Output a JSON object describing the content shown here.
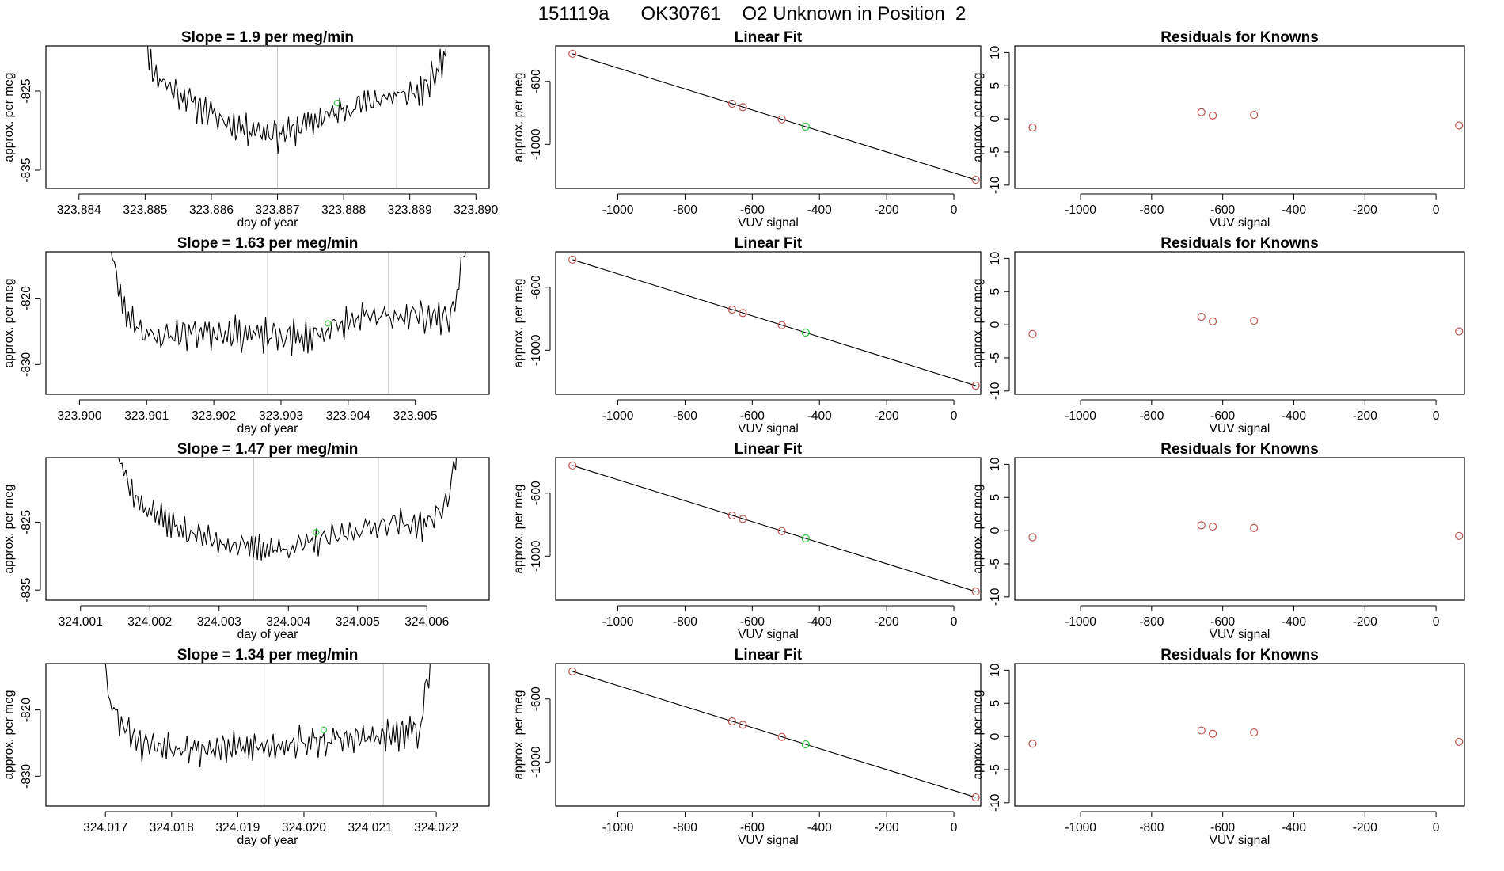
{
  "title": "151119a      OK30761    O2 Unknown in Position  2",
  "colors": {
    "trace": "#000000",
    "known_point": "#c0504d",
    "unknown_point": "#2ecc40",
    "vline": "#c8c8c8"
  },
  "chart_data": [
    {
      "type": "line",
      "panel": "time-series",
      "row": 1,
      "title": "Slope =  1.9  per meg/min",
      "xlabel": "day of year",
      "ylabel": "approx. per meg",
      "xlim": [
        323.8835,
        323.8902
      ],
      "ylim": [
        -837.3,
        -819.3
      ],
      "xticks": [
        "323.884",
        "323.885",
        "323.886",
        "323.887",
        "323.888",
        "323.889",
        "323.890"
      ],
      "yticks": [
        "-825",
        "-835"
      ],
      "trace_start": 323.8849,
      "trace_end": 323.8897,
      "seed": 11,
      "curve": [
        [
          0,
          -815
        ],
        [
          0.05,
          -823
        ],
        [
          0.15,
          -826
        ],
        [
          0.3,
          -829.5
        ],
        [
          0.45,
          -830.5
        ],
        [
          0.6,
          -828
        ],
        [
          0.75,
          -826
        ],
        [
          0.9,
          -825
        ],
        [
          0.96,
          -821
        ],
        [
          1,
          -812
        ]
      ],
      "noise": 1.8,
      "vlines": [
        323.887,
        323.8888
      ],
      "green_point": [
        323.8879,
        -826.5
      ]
    },
    {
      "type": "scatter",
      "panel": "linear-fit",
      "row": 1,
      "title": "Linear Fit",
      "xlabel": "VUV signal",
      "ylabel": "approx. per meg",
      "xlim": [
        -1185,
        80
      ],
      "ylim": [
        -1280,
        -375
      ],
      "xticks": [
        "-1000",
        "-800",
        "-600",
        "-400",
        "-200",
        "0"
      ],
      "yticks": [
        "-600",
        "-1000"
      ],
      "fit_line": [
        [
          -1135,
          -425
        ],
        [
          65,
          -1225
        ]
      ],
      "knowns": [
        [
          -1135,
          -425
        ],
        [
          -660,
          -742
        ],
        [
          -628,
          -764
        ],
        [
          -512,
          -841
        ],
        [
          65,
          -1225
        ]
      ],
      "unknown": [
        [
          -441,
          -888
        ]
      ]
    },
    {
      "type": "scatter",
      "panel": "residuals",
      "row": 1,
      "title": "Residuals for Knowns",
      "xlabel": "VUV signal",
      "ylabel": "approx. per meg",
      "xlim": [
        -1185,
        80
      ],
      "ylim": [
        -10.5,
        11
      ],
      "xticks": [
        "-1000",
        "-800",
        "-600",
        "-400",
        "-200",
        "0"
      ],
      "yticks": [
        "10",
        "5",
        "0",
        "-5",
        "-10"
      ],
      "residuals": [
        [
          -1135,
          -1.3
        ],
        [
          -660,
          1.0
        ],
        [
          -628,
          0.5
        ],
        [
          -512,
          0.6
        ],
        [
          65,
          -1.0
        ]
      ]
    },
    {
      "type": "line",
      "panel": "time-series",
      "row": 2,
      "title": "Slope =  1.63  per meg/min",
      "xlabel": "day of year",
      "ylabel": "approx. per meg",
      "xlim": [
        323.8995,
        323.9061
      ],
      "ylim": [
        -834.5,
        -813
      ],
      "xticks": [
        "323.900",
        "323.901",
        "323.902",
        "323.903",
        "323.904",
        "323.905"
      ],
      "yticks": [
        "-820",
        "-830"
      ],
      "trace_start": 323.9004,
      "trace_end": 323.9058,
      "seed": 23,
      "curve": [
        [
          0,
          -810
        ],
        [
          0.05,
          -822
        ],
        [
          0.12,
          -826
        ],
        [
          0.25,
          -825
        ],
        [
          0.4,
          -825.5
        ],
        [
          0.55,
          -826
        ],
        [
          0.7,
          -823
        ],
        [
          0.85,
          -822.5
        ],
        [
          0.95,
          -823
        ],
        [
          1,
          -810
        ]
      ],
      "noise": 2.2,
      "vlines": [
        323.9028,
        323.9046
      ],
      "green_point": [
        323.9037,
        -823.8
      ]
    },
    {
      "type": "scatter",
      "panel": "linear-fit",
      "row": 2,
      "title": "Linear Fit",
      "xlabel": "VUV signal",
      "ylabel": "approx. per meg",
      "xlim": [
        -1185,
        80
      ],
      "ylim": [
        -1280,
        -375
      ],
      "xticks": [
        "-1000",
        "-800",
        "-600",
        "-400",
        "-200",
        "0"
      ],
      "yticks": [
        "-600",
        "-1000"
      ],
      "fit_line": [
        [
          -1135,
          -425
        ],
        [
          65,
          -1225
        ]
      ],
      "knowns": [
        [
          -1135,
          -425
        ],
        [
          -660,
          -742
        ],
        [
          -628,
          -764
        ],
        [
          -512,
          -841
        ],
        [
          65,
          -1225
        ]
      ],
      "unknown": [
        [
          -441,
          -888
        ]
      ]
    },
    {
      "type": "scatter",
      "panel": "residuals",
      "row": 2,
      "title": "Residuals for Knowns",
      "xlabel": "VUV signal",
      "ylabel": "approx. per meg",
      "xlim": [
        -1185,
        80
      ],
      "ylim": [
        -10.5,
        11
      ],
      "xticks": [
        "-1000",
        "-800",
        "-600",
        "-400",
        "-200",
        "0"
      ],
      "yticks": [
        "10",
        "5",
        "0",
        "-5",
        "-10"
      ],
      "residuals": [
        [
          -1135,
          -1.4
        ],
        [
          -660,
          1.2
        ],
        [
          -628,
          0.5
        ],
        [
          -512,
          0.6
        ],
        [
          65,
          -1.0
        ]
      ]
    },
    {
      "type": "line",
      "panel": "time-series",
      "row": 3,
      "title": "Slope =  1.47  per meg/min",
      "xlabel": "day of year",
      "ylabel": "approx. per meg",
      "xlim": [
        324.0005,
        324.0069
      ],
      "ylim": [
        -836.5,
        -815.5
      ],
      "xticks": [
        "324.001",
        "324.002",
        "324.003",
        "324.004",
        "324.005",
        "324.006"
      ],
      "yticks": [
        "-825",
        "-835"
      ],
      "trace_start": 324.0014,
      "trace_end": 324.0065,
      "seed": 37,
      "curve": [
        [
          0,
          -812
        ],
        [
          0.08,
          -822
        ],
        [
          0.2,
          -826
        ],
        [
          0.35,
          -828.5
        ],
        [
          0.5,
          -829
        ],
        [
          0.65,
          -827
        ],
        [
          0.8,
          -825
        ],
        [
          0.9,
          -825.5
        ],
        [
          0.96,
          -822
        ],
        [
          1,
          -811
        ]
      ],
      "noise": 1.8,
      "vlines": [
        324.0035,
        324.0053
      ],
      "green_point": [
        324.0044,
        -826.5
      ]
    },
    {
      "type": "scatter",
      "panel": "linear-fit",
      "row": 3,
      "title": "Linear Fit",
      "xlabel": "VUV signal",
      "ylabel": "approx. per meg",
      "xlim": [
        -1185,
        80
      ],
      "ylim": [
        -1280,
        -375
      ],
      "xticks": [
        "-1000",
        "-800",
        "-600",
        "-400",
        "-200",
        "0"
      ],
      "yticks": [
        "-600",
        "-1000"
      ],
      "fit_line": [
        [
          -1135,
          -425
        ],
        [
          65,
          -1225
        ]
      ],
      "knowns": [
        [
          -1135,
          -425
        ],
        [
          -660,
          -742
        ],
        [
          -628,
          -764
        ],
        [
          -512,
          -841
        ],
        [
          65,
          -1225
        ]
      ],
      "unknown": [
        [
          -441,
          -888
        ]
      ]
    },
    {
      "type": "scatter",
      "panel": "residuals",
      "row": 3,
      "title": "Residuals for Knowns",
      "xlabel": "VUV signal",
      "ylabel": "approx. per meg",
      "xlim": [
        -1185,
        80
      ],
      "ylim": [
        -10.5,
        11
      ],
      "xticks": [
        "-1000",
        "-800",
        "-600",
        "-400",
        "-200",
        "0"
      ],
      "yticks": [
        "10",
        "5",
        "0",
        "-5",
        "-10"
      ],
      "residuals": [
        [
          -1135,
          -1.0
        ],
        [
          -660,
          0.8
        ],
        [
          -628,
          0.6
        ],
        [
          -512,
          0.4
        ],
        [
          65,
          -0.8
        ]
      ]
    },
    {
      "type": "line",
      "panel": "time-series",
      "row": 4,
      "title": "Slope =  1.34  per meg/min",
      "xlabel": "day of year",
      "ylabel": "approx. per meg",
      "xlim": [
        324.0161,
        324.0228
      ],
      "ylim": [
        -834.5,
        -813
      ],
      "xticks": [
        "324.017",
        "324.018",
        "324.019",
        "324.020",
        "324.021",
        "324.022"
      ],
      "yticks": [
        "-820",
        "-830"
      ],
      "trace_start": 324.0169,
      "trace_end": 324.022,
      "seed": 53,
      "curve": [
        [
          0,
          -808
        ],
        [
          0.04,
          -820
        ],
        [
          0.12,
          -825
        ],
        [
          0.3,
          -826
        ],
        [
          0.5,
          -825.5
        ],
        [
          0.7,
          -824.5
        ],
        [
          0.85,
          -824
        ],
        [
          0.95,
          -823
        ],
        [
          1,
          -808
        ]
      ],
      "noise": 2.2,
      "vlines": [
        324.0194,
        324.0212
      ],
      "green_point": [
        324.0203,
        -823
      ]
    },
    {
      "type": "scatter",
      "panel": "linear-fit",
      "row": 4,
      "title": "Linear Fit",
      "xlabel": "VUV signal",
      "ylabel": "approx. per meg",
      "xlim": [
        -1185,
        80
      ],
      "ylim": [
        -1280,
        -375
      ],
      "xticks": [
        "-1000",
        "-800",
        "-600",
        "-400",
        "-200",
        "0"
      ],
      "yticks": [
        "-600",
        "-1000"
      ],
      "fit_line": [
        [
          -1135,
          -425
        ],
        [
          65,
          -1225
        ]
      ],
      "knowns": [
        [
          -1135,
          -425
        ],
        [
          -660,
          -742
        ],
        [
          -628,
          -764
        ],
        [
          -512,
          -841
        ],
        [
          65,
          -1225
        ]
      ],
      "unknown": [
        [
          -441,
          -888
        ]
      ]
    },
    {
      "type": "scatter",
      "panel": "residuals",
      "row": 4,
      "title": "Residuals for Knowns",
      "xlabel": "VUV signal",
      "ylabel": "approx. per meg",
      "xlim": [
        -1185,
        80
      ],
      "ylim": [
        -10.5,
        11
      ],
      "xticks": [
        "-1000",
        "-800",
        "-600",
        "-400",
        "-200",
        "0"
      ],
      "yticks": [
        "10",
        "5",
        "0",
        "-5",
        "-10"
      ],
      "residuals": [
        [
          -1135,
          -1.1
        ],
        [
          -660,
          0.9
        ],
        [
          -628,
          0.4
        ],
        [
          -512,
          0.6
        ],
        [
          65,
          -0.8
        ]
      ]
    }
  ]
}
